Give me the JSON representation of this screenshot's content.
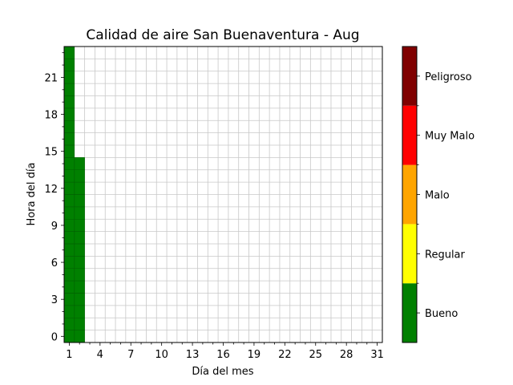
{
  "chart_data": {
    "type": "heatmap",
    "title": "Calidad de aire San Buenaventura - Aug",
    "xlabel": "Día del mes",
    "ylabel": "Hora del día",
    "xlim": [
      0.5,
      31.5
    ],
    "ylim": [
      -0.5,
      23.5
    ],
    "x_ticks": [
      1,
      4,
      7,
      10,
      13,
      16,
      19,
      22,
      25,
      28,
      31
    ],
    "y_ticks": [
      0,
      3,
      6,
      9,
      12,
      15,
      18,
      21
    ],
    "grid": true,
    "cells": [
      {
        "day": 1,
        "hours": [
          0,
          23
        ],
        "category": "Bueno"
      },
      {
        "day": 2,
        "hours": [
          0,
          14
        ],
        "category": "Bueno"
      }
    ],
    "colorbar": {
      "categories": [
        "Bueno",
        "Regular",
        "Malo",
        "Muy Malo",
        "Peligroso"
      ],
      "colors": [
        "#008000",
        "#ffff00",
        "#ffa500",
        "#ff0000",
        "#800000"
      ]
    }
  }
}
